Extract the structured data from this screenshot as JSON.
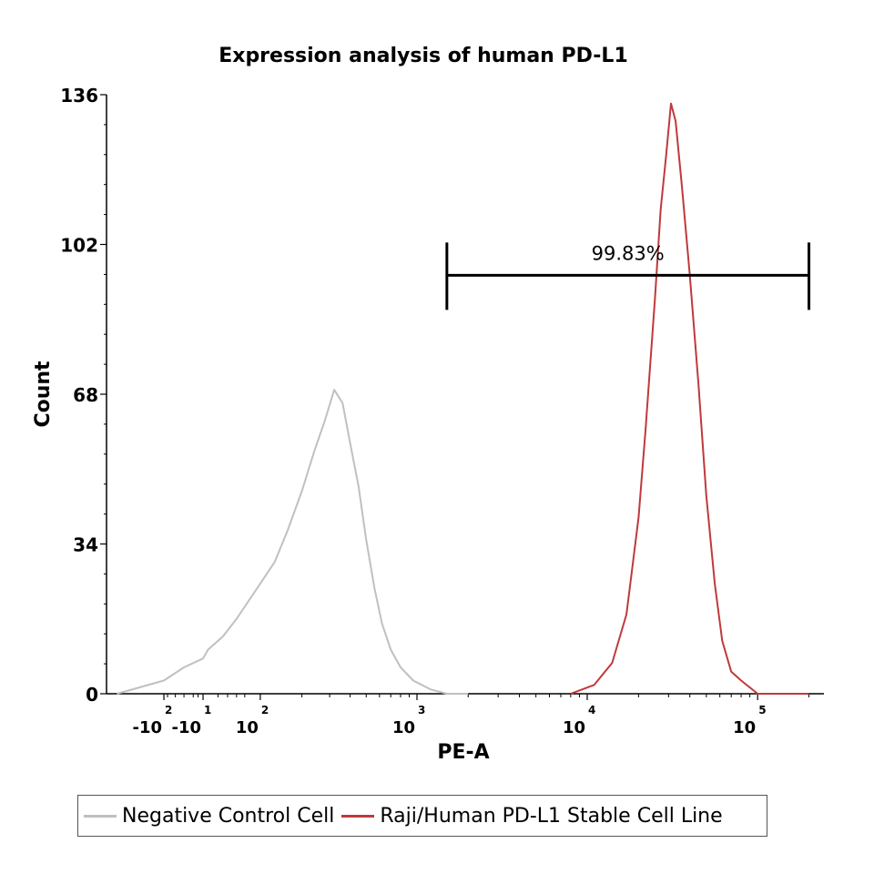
{
  "chart_data": {
    "type": "area",
    "title": "Expression analysis of human PD-L1",
    "xlabel": "PE-A",
    "ylabel": "Count",
    "ylim": [
      0,
      136
    ],
    "yticks": [
      "0",
      "34",
      "68",
      "102",
      "136"
    ],
    "x_scale": "biexponential",
    "xticks": [
      {
        "base": "-10",
        "exp": "2",
        "value": -100
      },
      {
        "base": "-10",
        "exp": "1",
        "value": -10
      },
      {
        "base": "10",
        "exp": "2",
        "value": 100
      },
      {
        "base": "10",
        "exp": "3",
        "value": 1000
      },
      {
        "base": "10",
        "exp": "4",
        "value": 10000
      },
      {
        "base": "10",
        "exp": "5",
        "value": 100000
      }
    ],
    "gate": {
      "label": "99.83%",
      "x_start": 1500,
      "x_end": 200000,
      "level": 95
    },
    "series": [
      {
        "name": "Negative Control Cell",
        "color": "#c0c0c0",
        "x": [
          -300,
          -100,
          -50,
          -10,
          0,
          30,
          60,
          100,
          130,
          160,
          200,
          240,
          280,
          320,
          360,
          400,
          450,
          500,
          560,
          620,
          700,
          800,
          950,
          1200,
          1500,
          2000
        ],
        "y": [
          0,
          3,
          6,
          8,
          10,
          13,
          17,
          25,
          30,
          37,
          46,
          55,
          62,
          69,
          66,
          57,
          47,
          35,
          24,
          16,
          10,
          6,
          3,
          1,
          0,
          0
        ]
      },
      {
        "name": "Raji/Human PD-L1 Stable Cell Line",
        "color": "#c0393b",
        "x": [
          8000,
          11000,
          14000,
          17000,
          20000,
          22000,
          25000,
          27000,
          29000,
          31000,
          33000,
          36000,
          40000,
          45000,
          50000,
          56000,
          62000,
          70000,
          80000,
          100000,
          150000,
          200000
        ],
        "y": [
          0,
          2,
          7,
          18,
          40,
          60,
          90,
          110,
          122,
          134,
          130,
          115,
          95,
          70,
          45,
          25,
          12,
          5,
          3,
          0,
          0,
          0
        ]
      }
    ],
    "legend": {
      "position": "bottom",
      "items": [
        "Negative Control Cell",
        "Raji/Human PD-L1 Stable Cell Line"
      ]
    }
  }
}
